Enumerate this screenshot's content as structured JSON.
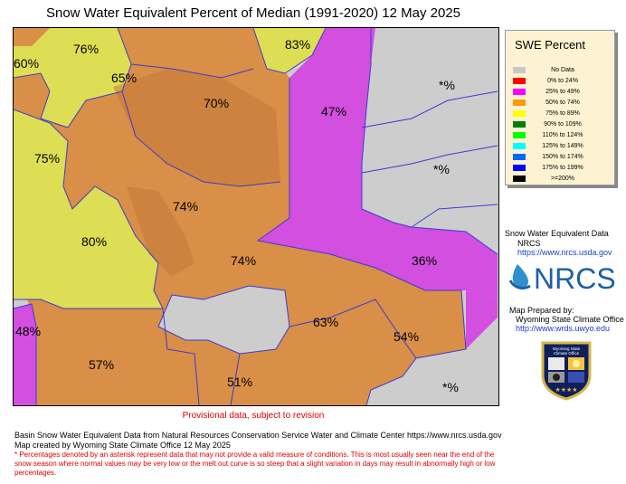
{
  "title": "Snow Water Equivalent Percent of Median (1991-2020) 12 May 2025",
  "map": {
    "basin_labels": [
      {
        "id": "b76",
        "text": "76%"
      },
      {
        "id": "b60",
        "text": "60%"
      },
      {
        "id": "b65",
        "text": "65%"
      },
      {
        "id": "b83",
        "text": "83%"
      },
      {
        "id": "b70",
        "text": "70%"
      },
      {
        "id": "b47",
        "text": "47%"
      },
      {
        "id": "bstar1",
        "text": "*%"
      },
      {
        "id": "b75",
        "text": "75%"
      },
      {
        "id": "bstar2",
        "text": "*%"
      },
      {
        "id": "b74a",
        "text": "74%"
      },
      {
        "id": "b80",
        "text": "80%"
      },
      {
        "id": "b74b",
        "text": "74%"
      },
      {
        "id": "b36",
        "text": "36%"
      },
      {
        "id": "b48",
        "text": "48%"
      },
      {
        "id": "b63",
        "text": "63%"
      },
      {
        "id": "b54",
        "text": "54%"
      },
      {
        "id": "b57",
        "text": "57%"
      },
      {
        "id": "b51",
        "text": "51%"
      },
      {
        "id": "bstar3",
        "text": "*%"
      }
    ]
  },
  "legend": {
    "title": "SWE Percent",
    "items": [
      {
        "label": "No Data",
        "color": "#c8c8c8"
      },
      {
        "label": "0% to  24%",
        "color": "#ff0000"
      },
      {
        "label": "25% to  49%",
        "color": "#ff00ff"
      },
      {
        "label": "50% to  74%",
        "color": "#ff9900"
      },
      {
        "label": "75% to  89%",
        "color": "#ffff00"
      },
      {
        "label": "90% to 109%",
        "color": "#008000"
      },
      {
        "label": "110% to 124%",
        "color": "#00ff00"
      },
      {
        "label": "125% to 149%",
        "color": "#00ffff"
      },
      {
        "label": "150% to 174%",
        "color": "#0066ff"
      },
      {
        "label": "175% to 199%",
        "color": "#0000ff"
      },
      {
        "label": ">=200%",
        "color": "#000000"
      }
    ]
  },
  "source": {
    "line1": "Snow Water Equivalent Data",
    "line2": "NRCS",
    "link": "https://www.nrcs.usda.gov",
    "logo_text": "NRCS"
  },
  "prepared": {
    "line1": "Map Prepared by:",
    "line2": "Wyoming State Climate Office",
    "link": "http://www.wrds.uwyo.edu",
    "seal_text1": "Wyoming State",
    "seal_text2": "Climate Office"
  },
  "provisional": "Provisional data, subject to revision",
  "credits": {
    "line1": "Basin Snow Water Equivalent Data from Natural Resources Conservation Service Water and Climate Center https://www.nrcs.usda.gov",
    "line2": "Map created by Wyoming State Climate Office 12 May 2025"
  },
  "note": "* Percentages denoted by an asterisk represent data that may not provide a valid measure of conditions.  This is most usually seen near the end of the snow season where normal values may be very low or the melt out curve is so steep that a slight variation in days may result in abnormally high or low percentages.",
  "colors": {
    "orange": "#d98f47",
    "yellow": "#dede55",
    "magenta": "#d24fe0",
    "gray": "#cdcdcd",
    "border": "#3b3bd0"
  }
}
